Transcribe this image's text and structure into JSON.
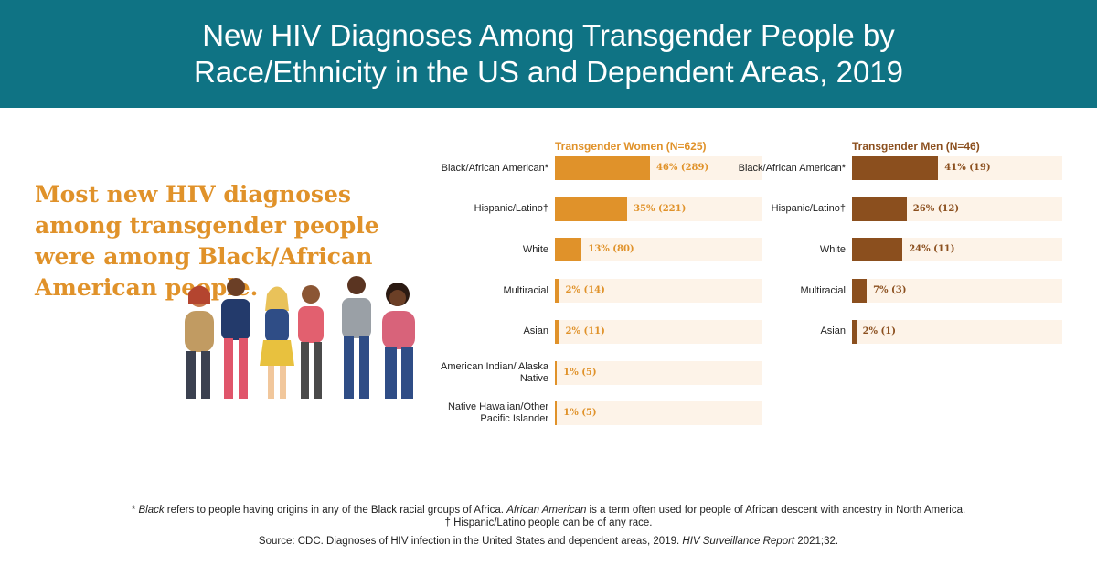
{
  "title": "New HIV Diagnoses Among Transgender People by Race/Ethnicity in the US and Dependent Areas, 2019",
  "headline": "Most new HIV diagnoses among transgender people were among Black/African American people.",
  "chart_data": [
    {
      "type": "bar",
      "orientation": "horizontal",
      "title": "Transgender Women  (N=625)",
      "color": "#e0922a",
      "track_color": "#fdf3e8",
      "categories": [
        "Black/African American*",
        "Hispanic/Latino†",
        "White",
        "Multiracial",
        "Asian",
        "American Indian/ Alaska Native",
        "Native Hawaiian/Other Pacific Islander"
      ],
      "values": [
        46,
        35,
        13,
        2,
        2,
        1,
        1
      ],
      "value_labels": [
        "46% (289)",
        "35% (221)",
        "13% (80)",
        "2% (14)",
        "2% (11)",
        "1% (5)",
        "1% (5)"
      ],
      "xlim": [
        0,
        100
      ]
    },
    {
      "type": "bar",
      "orientation": "horizontal",
      "title": "Transgender Men (N=46)",
      "color": "#8b4f1e",
      "track_color": "#fdf3e8",
      "categories": [
        "Black/African American*",
        "Hispanic/Latino†",
        "White",
        "Multiracial",
        "Asian"
      ],
      "values": [
        41,
        26,
        24,
        7,
        2
      ],
      "value_labels": [
        "41% (19)",
        "26% (12)",
        "24% (11)",
        "7% (3)",
        "2% (1)"
      ],
      "xlim": [
        0,
        100
      ]
    }
  ],
  "footnotes": [
    [
      "* ",
      "Black",
      " refers to people having origins in any of the Black racial groups of Africa. ",
      "African American",
      " is a term often used for people of African descent with ancestry in North America."
    ],
    [
      "† Hispanic/Latino people can be of any race."
    ]
  ],
  "source": [
    "Source: CDC. Diagnoses of HIV infection in the United States and dependent areas, 2019. ",
    "HIV Surveillance Report",
    " 2021;32."
  ]
}
